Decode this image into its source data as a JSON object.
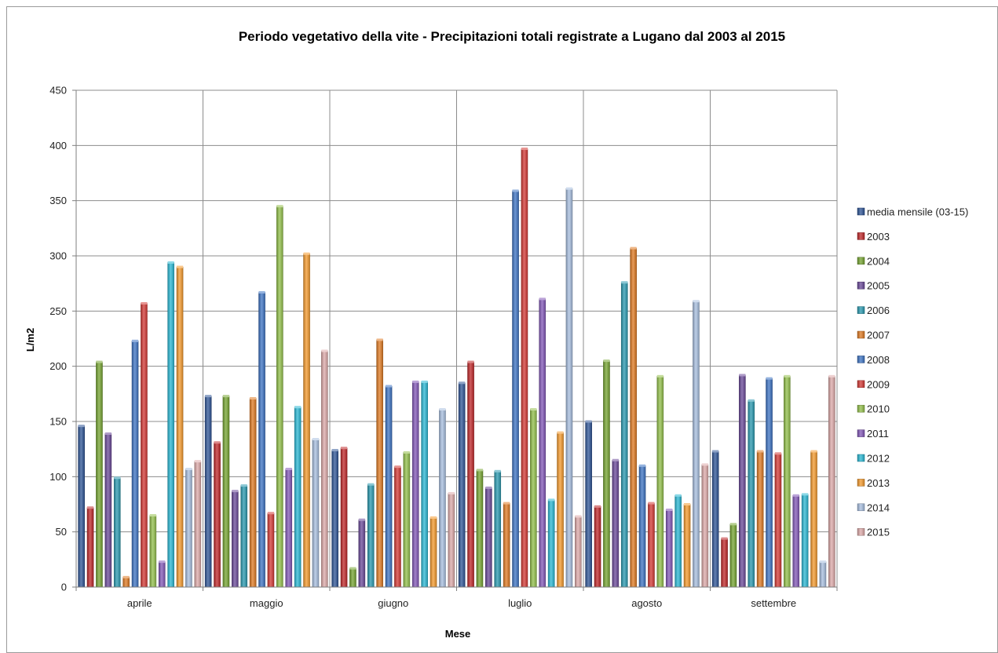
{
  "chart_data": {
    "type": "bar",
    "title": "Periodo vegetativo della vite - Precipitazioni totali registrate a Lugano dal 2003 al 2015",
    "xlabel": "Mese",
    "ylabel": "L/m2",
    "ylim": [
      0,
      450
    ],
    "yticks": [
      "0",
      "50",
      "100",
      "150",
      "200",
      "250",
      "300",
      "350",
      "400",
      "450"
    ],
    "grid": true,
    "legend_position": "right",
    "categories": [
      "aprile",
      "maggio",
      "giugno",
      "luglio",
      "agosto",
      "settembre"
    ],
    "series": [
      {
        "name": "media mensile (03-15)",
        "color": "#2f5597",
        "values": [
          146,
          173,
          124,
          185,
          150,
          123
        ]
      },
      {
        "name": "2003",
        "color": "#c0282a",
        "values": [
          72,
          131,
          126,
          204,
          73,
          44
        ]
      },
      {
        "name": "2004",
        "color": "#77a532",
        "values": [
          204,
          173,
          17,
          106,
          205,
          57
        ]
      },
      {
        "name": "2005",
        "color": "#6b4a9a",
        "values": [
          139,
          87,
          61,
          90,
          115,
          192
        ]
      },
      {
        "name": "2006",
        "color": "#2a9ab0",
        "values": [
          99,
          92,
          93,
          105,
          276,
          169
        ]
      },
      {
        "name": "2007",
        "color": "#e07b23",
        "values": [
          9,
          171,
          224,
          76,
          307,
          123
        ]
      },
      {
        "name": "2008",
        "color": "#3e74c4",
        "values": [
          223,
          267,
          182,
          359,
          110,
          189
        ]
      },
      {
        "name": "2009",
        "color": "#d43a35",
        "values": [
          257,
          67,
          109,
          397,
          76,
          121
        ]
      },
      {
        "name": "2010",
        "color": "#93c04b",
        "values": [
          65,
          345,
          122,
          161,
          191,
          191
        ]
      },
      {
        "name": "2011",
        "color": "#8358b8",
        "values": [
          23,
          107,
          186,
          261,
          70,
          83
        ]
      },
      {
        "name": "2012",
        "color": "#2ab8d4",
        "values": [
          294,
          163,
          186,
          79,
          83,
          84
        ]
      },
      {
        "name": "2013",
        "color": "#f59b2e",
        "values": [
          290,
          302,
          63,
          140,
          75,
          123
        ]
      },
      {
        "name": "2014",
        "color": "#a8bfe0",
        "values": [
          107,
          134,
          161,
          361,
          259,
          23
        ]
      },
      {
        "name": "2015",
        "color": "#deaaa9",
        "values": [
          114,
          214,
          85,
          64,
          111,
          191
        ]
      }
    ]
  }
}
